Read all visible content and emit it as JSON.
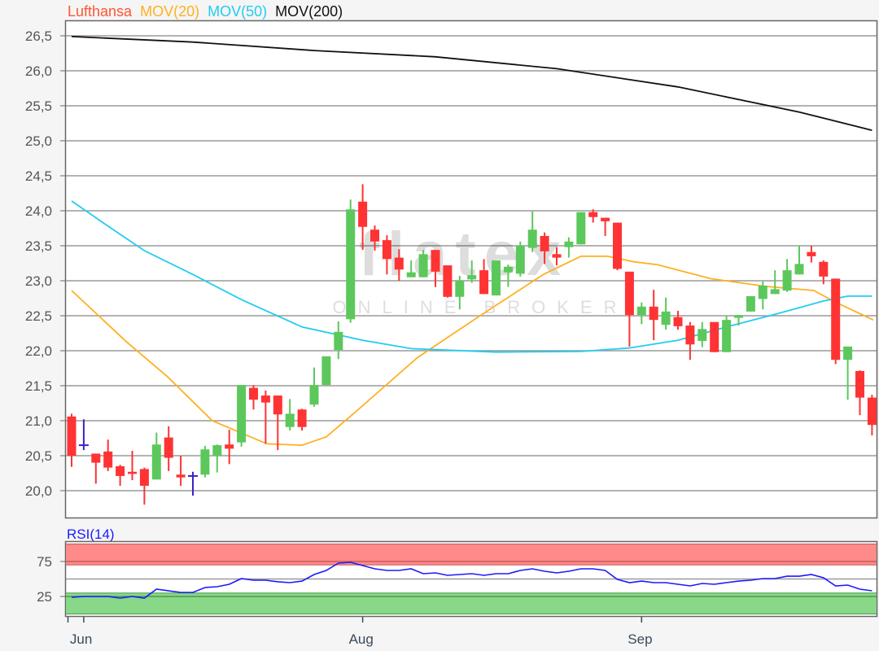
{
  "legend": {
    "items": [
      {
        "label": "Lufthansa",
        "color": "#ff5533"
      },
      {
        "label": "MOV(20)",
        "color": "#ffb020"
      },
      {
        "label": "MOV(50)",
        "color": "#22ccf0"
      },
      {
        "label": "MOV(200)",
        "color": "#111111"
      }
    ]
  },
  "watermark": {
    "logo": "flatex",
    "sub": "ONLINE BROKER"
  },
  "colors": {
    "up": "#5cc85c",
    "down": "#ff3333",
    "doji": "#3a22cc",
    "rsi_line": "#1a1aff",
    "rsi_overbought": "#ff8a8a",
    "rsi_oversold": "#88d888"
  },
  "chart_data": [
    {
      "type": "candlestick",
      "title": "",
      "ylim": [
        19.75,
        26.75
      ],
      "grid": true,
      "legend_placement": "top-left",
      "y_ticks": [
        "20,0",
        "20,5",
        "21,0",
        "21,5",
        "22,0",
        "22,5",
        "23,0",
        "23,5",
        "24,0",
        "24,5",
        "25,0",
        "25,5",
        "26,0",
        "26,5"
      ],
      "y_tick_values": [
        20,
        20.5,
        21,
        21.5,
        22,
        22.5,
        23,
        23.5,
        24,
        24.5,
        25,
        25.5,
        26,
        26.5
      ],
      "x_ticks": [
        {
          "label": "",
          "index": -0.3
        },
        {
          "label": "Jun",
          "index": 1
        },
        {
          "label": "Aug",
          "index": 24
        },
        {
          "label": "Sep",
          "index": 47
        }
      ],
      "candles": [
        [
          21.06,
          21.1,
          20.34,
          20.5
        ],
        [
          20.65,
          21.02,
          20.58,
          20.65
        ],
        [
          20.53,
          20.53,
          20.1,
          20.4
        ],
        [
          20.56,
          20.73,
          20.28,
          20.33
        ],
        [
          20.35,
          20.37,
          20.07,
          20.21
        ],
        [
          20.27,
          20.57,
          20.15,
          20.24
        ],
        [
          20.31,
          20.33,
          19.8,
          20.07
        ],
        [
          20.16,
          20.83,
          20.16,
          20.66
        ],
        [
          20.76,
          20.92,
          20.28,
          20.47
        ],
        [
          20.23,
          20.5,
          20.07,
          20.19
        ],
        [
          20.21,
          20.27,
          19.93,
          20.21
        ],
        [
          20.23,
          20.64,
          20.19,
          20.59
        ],
        [
          20.5,
          20.66,
          20.26,
          20.65
        ],
        [
          20.66,
          20.87,
          20.38,
          20.6
        ],
        [
          20.69,
          21.51,
          20.63,
          21.51
        ],
        [
          21.47,
          21.51,
          21.16,
          21.3
        ],
        [
          21.36,
          21.43,
          20.67,
          21.26
        ],
        [
          21.36,
          21.36,
          20.58,
          21.09
        ],
        [
          20.91,
          21.31,
          20.86,
          21.1
        ],
        [
          21.16,
          21.17,
          20.86,
          20.91
        ],
        [
          21.23,
          21.76,
          21.2,
          21.51
        ],
        [
          21.51,
          21.92,
          21.51,
          21.92
        ],
        [
          22.01,
          22.42,
          21.88,
          22.27
        ],
        [
          22.45,
          24.16,
          22.4,
          24.02
        ],
        [
          24.13,
          24.38,
          23.44,
          23.77
        ],
        [
          23.73,
          23.79,
          23.43,
          23.56
        ],
        [
          23.58,
          23.65,
          23.09,
          23.31
        ],
        [
          23.33,
          23.45,
          23.0,
          23.16
        ],
        [
          23.05,
          23.29,
          23.05,
          23.12
        ],
        [
          23.05,
          23.44,
          23.05,
          23.38
        ],
        [
          23.44,
          23.44,
          22.91,
          23.13
        ],
        [
          23.22,
          23.22,
          22.76,
          22.77
        ],
        [
          22.77,
          23.07,
          22.59,
          23.0
        ],
        [
          23.02,
          23.29,
          22.97,
          23.08
        ],
        [
          23.15,
          23.31,
          22.81,
          22.81
        ],
        [
          22.79,
          23.29,
          22.79,
          23.29
        ],
        [
          23.12,
          23.23,
          22.91,
          23.2
        ],
        [
          23.1,
          23.56,
          23.06,
          23.5
        ],
        [
          23.47,
          23.99,
          23.41,
          23.73
        ],
        [
          23.64,
          23.69,
          23.24,
          23.42
        ],
        [
          23.38,
          23.48,
          23.22,
          23.33
        ],
        [
          23.48,
          23.62,
          23.33,
          23.56
        ],
        [
          23.52,
          23.98,
          23.52,
          23.98
        ],
        [
          23.98,
          24.02,
          23.83,
          23.91
        ],
        [
          23.9,
          23.9,
          23.64,
          23.85
        ],
        [
          23.83,
          23.83,
          23.15,
          23.17
        ],
        [
          23.13,
          23.13,
          22.06,
          22.51
        ],
        [
          22.51,
          22.69,
          22.38,
          22.63
        ],
        [
          22.63,
          22.87,
          22.15,
          22.44
        ],
        [
          22.37,
          22.76,
          22.3,
          22.56
        ],
        [
          22.48,
          22.57,
          22.3,
          22.35
        ],
        [
          22.36,
          22.41,
          21.87,
          22.09
        ],
        [
          22.14,
          22.41,
          22.05,
          22.31
        ],
        [
          22.41,
          22.41,
          21.98,
          21.98
        ],
        [
          21.98,
          22.5,
          21.98,
          22.44
        ],
        [
          22.47,
          22.51,
          22.36,
          22.51
        ],
        [
          22.56,
          22.78,
          22.56,
          22.78
        ],
        [
          22.74,
          22.99,
          22.59,
          22.93
        ],
        [
          22.81,
          23.15,
          22.81,
          22.88
        ],
        [
          22.86,
          23.31,
          22.84,
          23.15
        ],
        [
          23.09,
          23.5,
          23.09,
          23.24
        ],
        [
          23.41,
          23.5,
          23.26,
          23.35
        ],
        [
          23.27,
          23.29,
          22.95,
          23.06
        ],
        [
          23.03,
          23.03,
          21.81,
          21.87
        ],
        [
          21.87,
          22.06,
          21.3,
          22.06
        ],
        [
          21.71,
          21.72,
          21.08,
          21.33
        ],
        [
          21.33,
          21.37,
          20.79,
          20.94
        ]
      ],
      "candle_fields": [
        "open",
        "high",
        "low",
        "close"
      ],
      "series": [
        {
          "name": "MOV(20)",
          "points": [
            [
              0,
              22.86
            ],
            [
              4.5,
              22.13
            ],
            [
              7.9,
              21.63
            ],
            [
              11.6,
              21.0
            ],
            [
              16.1,
              20.67
            ],
            [
              19,
              20.65
            ],
            [
              21,
              20.77
            ],
            [
              23.5,
              21.14
            ],
            [
              28.5,
              21.9
            ],
            [
              33.5,
              22.48
            ],
            [
              38.9,
              23.09
            ],
            [
              42,
              23.35
            ],
            [
              44.2,
              23.35
            ],
            [
              46.4,
              23.27
            ],
            [
              48.3,
              23.23
            ],
            [
              52.7,
              23.03
            ],
            [
              57.2,
              22.92
            ],
            [
              61.2,
              22.86
            ],
            [
              62.8,
              22.71
            ],
            [
              66.1,
              22.44
            ]
          ]
        },
        {
          "name": "MOV(50)",
          "points": [
            [
              0,
              24.14
            ],
            [
              3,
              23.78
            ],
            [
              6,
              23.43
            ],
            [
              10,
              23.09
            ],
            [
              14,
              22.73
            ],
            [
              19,
              22.34
            ],
            [
              24,
              22.15
            ],
            [
              28,
              22.03
            ],
            [
              35,
              21.98
            ],
            [
              42,
              21.99
            ],
            [
              46,
              22.04
            ],
            [
              50,
              22.15
            ],
            [
              54,
              22.34
            ],
            [
              58,
              22.52
            ],
            [
              62,
              22.71
            ],
            [
              64,
              22.78
            ],
            [
              66,
              22.78
            ]
          ]
        },
        {
          "name": "MOV(200)",
          "points": [
            [
              0,
              26.49
            ],
            [
              10,
              26.41
            ],
            [
              20,
              26.29
            ],
            [
              30,
              26.2
            ],
            [
              40,
              26.03
            ],
            [
              50,
              25.77
            ],
            [
              60,
              25.41
            ],
            [
              66,
              25.15
            ]
          ]
        }
      ]
    },
    {
      "type": "line",
      "title": "RSI(14)",
      "ylim": [
        -3,
        104
      ],
      "y_ticks": [
        "25",
        "75"
      ],
      "y_tick_values": [
        25,
        75
      ],
      "bands": [
        {
          "from": 70,
          "to": 100,
          "line": 75,
          "zone": "overbought"
        },
        {
          "from": 0,
          "to": 30,
          "line": 25,
          "zone": "oversold"
        }
      ],
      "midline": 50,
      "values": [
        23.8,
        25,
        25,
        25,
        22.7,
        25,
        22.7,
        35.5,
        33,
        30.8,
        30.8,
        37.8,
        39,
        42.4,
        50.6,
        48.3,
        48.3,
        46,
        44.8,
        47,
        56.4,
        62.2,
        72.7,
        73.8,
        69.2,
        64.5,
        62.2,
        62.2,
        64.5,
        57.6,
        58.7,
        55.2,
        56.4,
        57.6,
        55.2,
        57.6,
        57.6,
        62.2,
        64.5,
        61,
        58.7,
        61,
        64.5,
        64.5,
        62.2,
        49.4,
        44.8,
        47,
        44.8,
        44.8,
        42.4,
        40.1,
        43.6,
        42.4,
        44.8,
        47,
        48.3,
        50.6,
        50.6,
        54,
        54,
        56.4,
        51.7,
        40.1,
        41.3,
        35.5,
        33.1
      ]
    }
  ]
}
